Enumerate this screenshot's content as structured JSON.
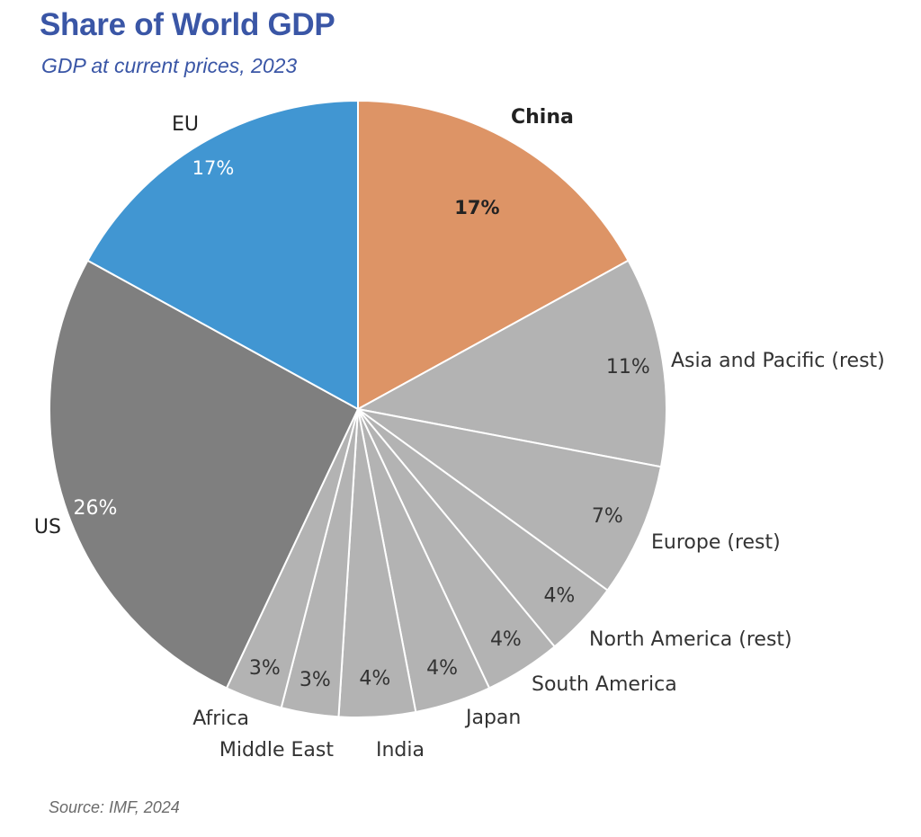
{
  "header": {
    "title": "Share of World GDP",
    "subtitle": "GDP at current prices, 2023"
  },
  "footer": {
    "source": "Source: IMF, 2024"
  },
  "chart_data": {
    "type": "pie",
    "title": "Share of World GDP",
    "subtitle": "GDP at current prices, 2023",
    "start": "12 o'clock",
    "direction": "clockwise",
    "slices": [
      {
        "label": "China",
        "value": 17,
        "value_label": "17%",
        "color": "#dd9466",
        "emphasis": true
      },
      {
        "label": "Asia and Pacific (rest)",
        "value": 11,
        "value_label": "11%",
        "color": "#b3b3b3",
        "emphasis": false
      },
      {
        "label": "Europe (rest)",
        "value": 7,
        "value_label": "7%",
        "color": "#b3b3b3",
        "emphasis": false
      },
      {
        "label": "North America (rest)",
        "value": 4,
        "value_label": "4%",
        "color": "#b3b3b3",
        "emphasis": false
      },
      {
        "label": "South America",
        "value": 4,
        "value_label": "4%",
        "color": "#b3b3b3",
        "emphasis": false
      },
      {
        "label": "Japan",
        "value": 4,
        "value_label": "4%",
        "color": "#b3b3b3",
        "emphasis": false
      },
      {
        "label": "India",
        "value": 4,
        "value_label": "4%",
        "color": "#b3b3b3",
        "emphasis": false
      },
      {
        "label": "Middle East",
        "value": 3,
        "value_label": "3%",
        "color": "#b3b3b3",
        "emphasis": false
      },
      {
        "label": "Africa",
        "value": 3,
        "value_label": "3%",
        "color": "#b3b3b3",
        "emphasis": false
      },
      {
        "label": "US",
        "value": 26,
        "value_label": "26%",
        "color": "#7f7f7f",
        "emphasis": true
      },
      {
        "label": "EU",
        "value": 17,
        "value_label": "17%",
        "color": "#4196d2",
        "emphasis": true
      }
    ]
  }
}
